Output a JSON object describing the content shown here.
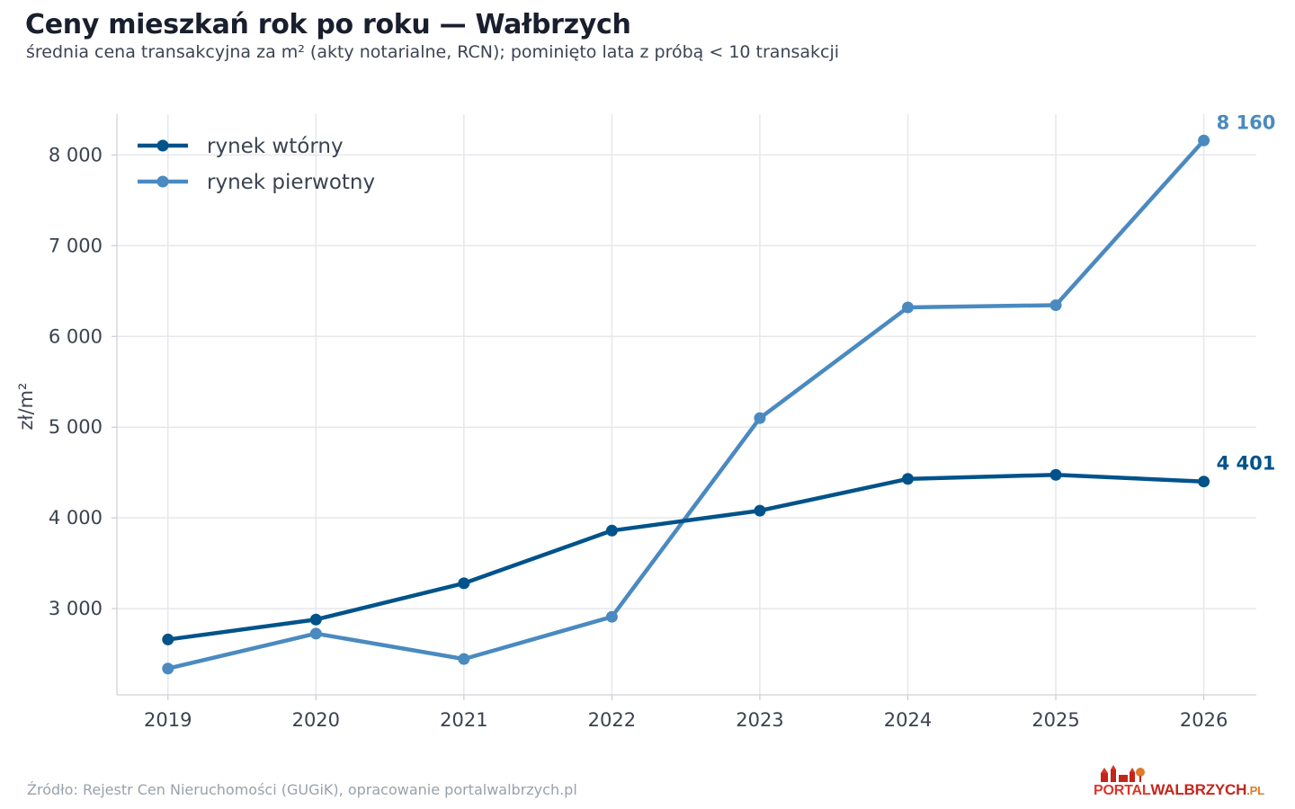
{
  "header": {
    "title": "Ceny mieszkań rok po roku — Wałbrzych",
    "subtitle": "średnia cena transakcyjna za m² (akty notarialne, RCN); pominięto lata z próbą < 10 transakcji"
  },
  "footer": {
    "source": "Źródło: Rejestr Cen Nieruchomości (GUGiK), opracowanie portalwalbrzych.pl"
  },
  "logo": {
    "part1": "PORTAL",
    "part2": "WALBRZYCH",
    "part3": ".PL",
    "colors": {
      "main": "#c4251b",
      "accent": "#e07a2a"
    }
  },
  "chart_data": {
    "type": "line",
    "x": [
      2019,
      2020,
      2021,
      2022,
      2023,
      2024,
      2025,
      2026
    ],
    "x_tick_labels": [
      "2019",
      "2020",
      "2021",
      "2022",
      "2023",
      "2024",
      "2025",
      "2026"
    ],
    "ylabel": "zł/m²",
    "ylim": [
      2050,
      8450
    ],
    "y_ticks": [
      3000,
      4000,
      5000,
      6000,
      7000,
      8000
    ],
    "y_tick_labels": [
      "3 000",
      "4 000",
      "5 000",
      "6 000",
      "7 000",
      "8 000"
    ],
    "grid": true,
    "legend_position": "top-left",
    "series": [
      {
        "name": "rynek wtórny",
        "color": "#00538a",
        "values": [
          2660,
          2880,
          3280,
          3860,
          4080,
          4430,
          4475,
          4401
        ],
        "end_label": "4 401"
      },
      {
        "name": "rynek pierwotny",
        "color": "#4a8ac0",
        "values": [
          2340,
          2725,
          2445,
          2910,
          5100,
          6320,
          6345,
          8160
        ],
        "end_label": "8 160"
      }
    ]
  }
}
